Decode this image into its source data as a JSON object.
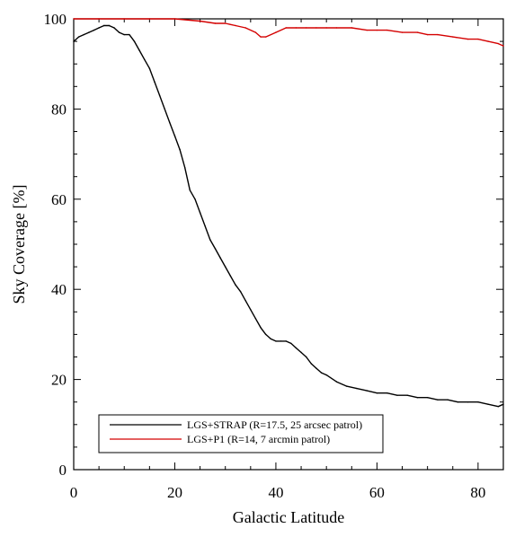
{
  "chart_data": {
    "type": "line",
    "title": "",
    "xlabel": "Galactic Latitude",
    "ylabel": "Sky Coverage [%]",
    "xlim": [
      0,
      85
    ],
    "ylim": [
      0,
      100
    ],
    "xticks": [
      "0",
      "20",
      "40",
      "60",
      "80"
    ],
    "yticks": [
      "0",
      "20",
      "40",
      "60",
      "80",
      "100"
    ],
    "grid": false,
    "legend_position": "bottom-left",
    "series": [
      {
        "name": "LGS+STRAP (R=17.5, 25 arcsec patrol)",
        "color": "#000000",
        "x": [
          0,
          1,
          2,
          3,
          4,
          5,
          6,
          7,
          8,
          9,
          10,
          11,
          12,
          13,
          14,
          15,
          16,
          17,
          18,
          19,
          20,
          21,
          22,
          23,
          24,
          25,
          26,
          27,
          28,
          29,
          30,
          31,
          32,
          33,
          34,
          35,
          36,
          37,
          38,
          39,
          40,
          41,
          42,
          43,
          44,
          45,
          46,
          47,
          48,
          49,
          50,
          52,
          54,
          56,
          58,
          60,
          62,
          64,
          66,
          68,
          70,
          72,
          74,
          76,
          78,
          80,
          82,
          84,
          85
        ],
        "y": [
          95,
          96,
          96.5,
          97,
          97.5,
          98,
          98.5,
          98.5,
          98,
          97,
          96.5,
          96.5,
          95,
          93,
          91,
          89,
          86,
          83,
          80,
          77,
          74,
          71,
          67,
          62,
          60,
          57,
          54,
          51,
          49,
          47,
          45,
          43,
          41,
          39.5,
          37.5,
          35.5,
          33.5,
          31.5,
          30,
          29,
          28.5,
          28.5,
          28.5,
          28,
          27,
          26,
          25,
          23.5,
          22.5,
          21.5,
          21,
          19.5,
          18.5,
          18,
          17.5,
          17,
          17,
          16.5,
          16.5,
          16,
          16,
          15.5,
          15.5,
          15,
          15,
          15,
          14.5,
          14,
          14.5
        ]
      },
      {
        "name": "LGS+P1 (R=14, 7 arcmin patrol)",
        "color": "#d40000",
        "x": [
          0,
          5,
          10,
          15,
          20,
          25,
          28,
          30,
          32,
          34,
          36,
          37,
          38,
          40,
          42,
          44,
          46,
          48,
          50,
          52,
          55,
          58,
          60,
          62,
          65,
          68,
          70,
          72,
          75,
          78,
          80,
          82,
          84,
          85
        ],
        "y": [
          100,
          100,
          100,
          100,
          100,
          99.5,
          99,
          99,
          98.5,
          98,
          97,
          96,
          96,
          97,
          98,
          98,
          98,
          98,
          98,
          98,
          98,
          97.5,
          97.5,
          97.5,
          97,
          97,
          96.5,
          96.5,
          96,
          95.5,
          95.5,
          95,
          94.5,
          94
        ]
      }
    ]
  }
}
